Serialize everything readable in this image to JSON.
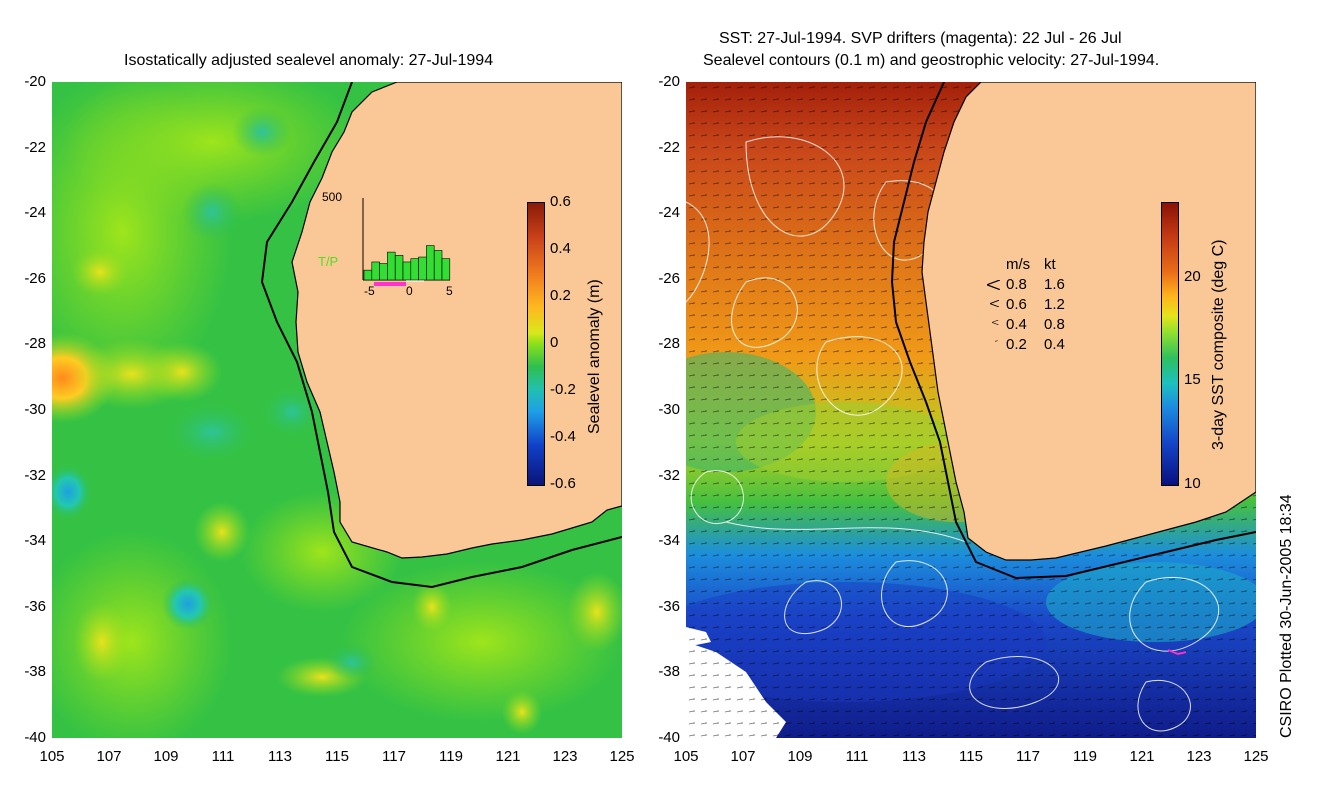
{
  "left": {
    "title": "Isostatically adjusted sealevel anomaly: 27-Jul-1994",
    "yticks": [
      "-20",
      "-22",
      "-24",
      "-26",
      "-28",
      "-30",
      "-32",
      "-34",
      "-36",
      "-38",
      "-40"
    ],
    "xticks": [
      "105",
      "107",
      "109",
      "111",
      "113",
      "115",
      "117",
      "119",
      "121",
      "123",
      "125"
    ],
    "colorbar": {
      "label": "Sealevel anomaly (m)",
      "ticks": [
        "0.6",
        "0.4",
        "0.2",
        "0",
        "-0.2",
        "-0.4",
        "-0.6"
      ]
    },
    "inset": {
      "ymax_label": "500",
      "series_label": "T/P",
      "xticks": [
        "-5",
        "0",
        "5"
      ],
      "bars": [
        60,
        110,
        100,
        170,
        150,
        110,
        130,
        140,
        210,
        180,
        130
      ]
    }
  },
  "right": {
    "title_line1": "SST: 27-Jul-1994. SVP drifters (magenta): 22 Jul - 26 Jul",
    "title_line2": "Sealevel contours (0.1 m) and geostrophic velocity: 27-Jul-1994.",
    "yticks": [
      "-20",
      "-22",
      "-24",
      "-26",
      "-28",
      "-30",
      "-32",
      "-34",
      "-36",
      "-38",
      "-40"
    ],
    "xticks": [
      "105",
      "107",
      "109",
      "111",
      "113",
      "115",
      "117",
      "119",
      "121",
      "123",
      "125"
    ],
    "colorbar": {
      "label": "3-day SST composite (deg C)",
      "ticks": [
        "20",
        "15",
        "10"
      ]
    },
    "legend": {
      "header_ms": "m/s",
      "header_kt": "kt",
      "rows": [
        {
          "ms": "0.8",
          "kt": "1.6"
        },
        {
          "ms": "0.6",
          "kt": "1.2"
        },
        {
          "ms": "0.4",
          "kt": "0.8"
        },
        {
          "ms": "0.2",
          "kt": "0.4"
        }
      ]
    }
  },
  "credit": "CSIRO Plotted 30-Jun-2005 18:34",
  "colors": {
    "land": "#fac896",
    "ocean_green": "#2fbf4f",
    "coast": "#000000"
  }
}
